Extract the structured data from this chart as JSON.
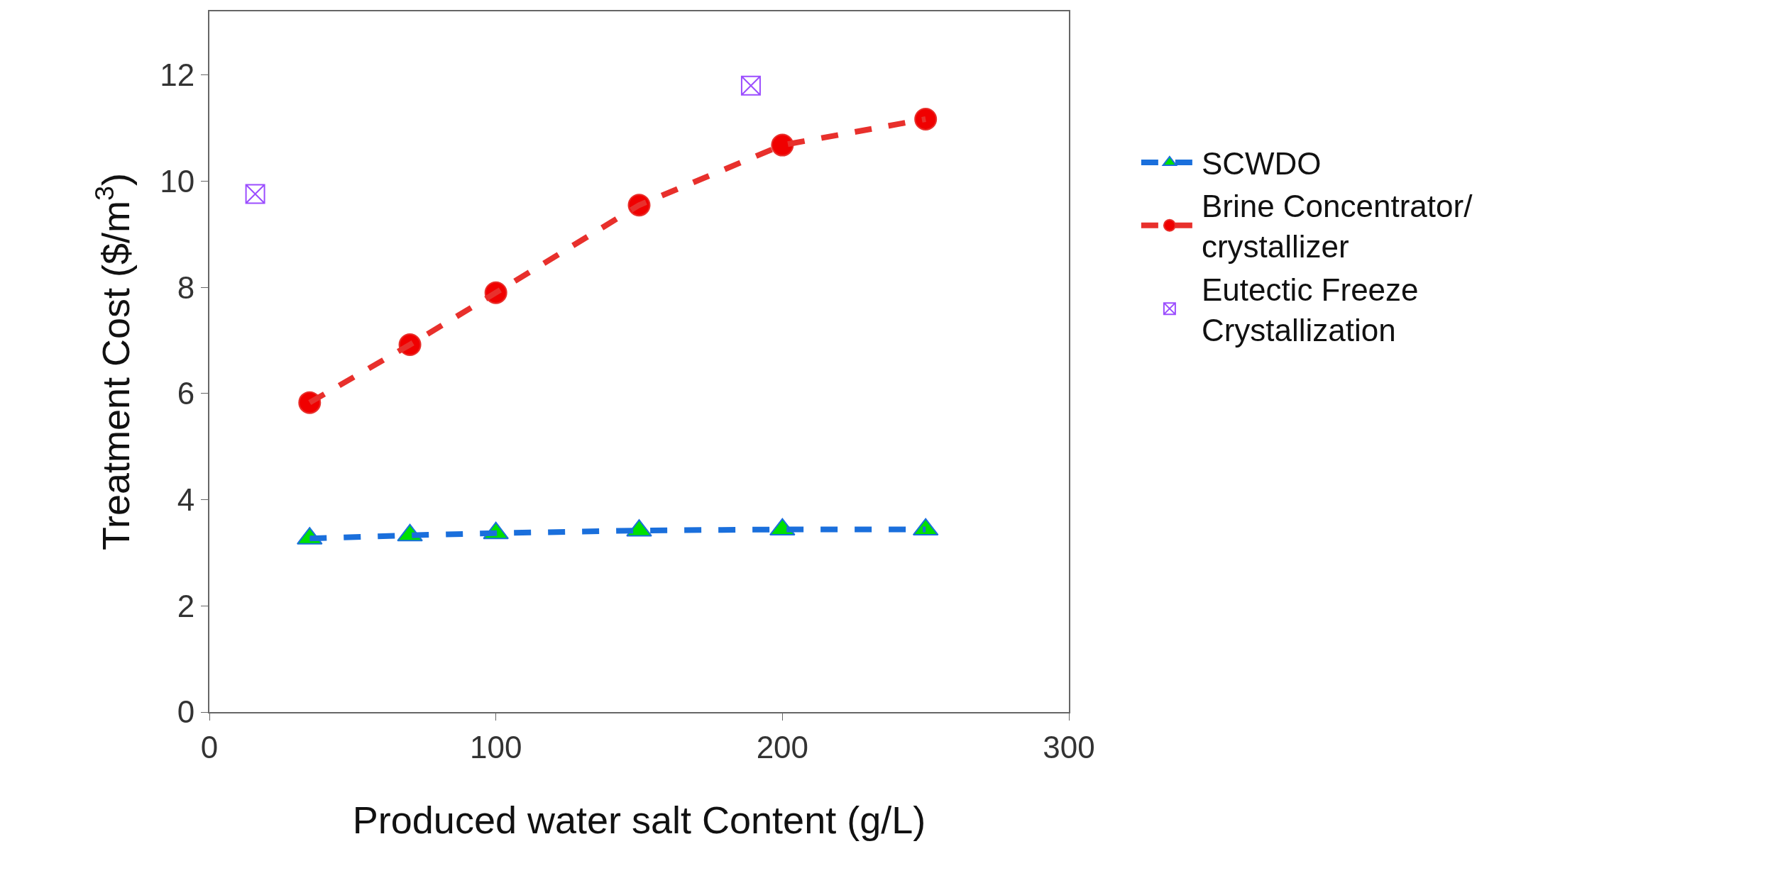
{
  "chart_data": {
    "type": "line",
    "xlabel": "Produced water salt Content (g/L)",
    "ylabel": "Treatment Cost ($/m$^{3}$)",
    "xlim": [
      0,
      300
    ],
    "xticks": [
      0,
      100,
      200,
      300
    ],
    "ylim": [
      0,
      13.2
    ],
    "yticks": [
      0,
      2,
      4,
      6,
      8,
      10,
      12
    ],
    "grid": false,
    "legend": "right",
    "line_style": "dashed",
    "series": [
      {
        "name": "SCWDO",
        "marker": "triangle",
        "color": "#1a6fdc",
        "colors": [
          "#00e000",
          "#00e000",
          "#00e000",
          "#00e000",
          "#00e000",
          "#00e000"
        ],
        "x": [
          35,
          70,
          100,
          150,
          200,
          250
        ],
        "values": [
          3.27,
          3.33,
          3.37,
          3.42,
          3.44,
          3.44
        ]
      },
      {
        "name": "Brine Concentrator/ crystallizer",
        "marker": "circle",
        "color": "#e8302c",
        "colors": [
          "#f00000",
          "#f00000",
          "#f00000",
          "#f00000",
          "#f00000",
          "#f00000"
        ],
        "x": [
          35,
          70,
          100,
          150,
          200,
          250
        ],
        "values": [
          5.83,
          6.92,
          7.9,
          9.55,
          10.68,
          11.17
        ]
      },
      {
        "name": "Eutectic Freeze Crystallization",
        "type": "scatter",
        "marker": "cross",
        "color": "#9b4dff",
        "x": [
          16,
          189
        ],
        "values": [
          9.76,
          11.8
        ]
      }
    ]
  }
}
